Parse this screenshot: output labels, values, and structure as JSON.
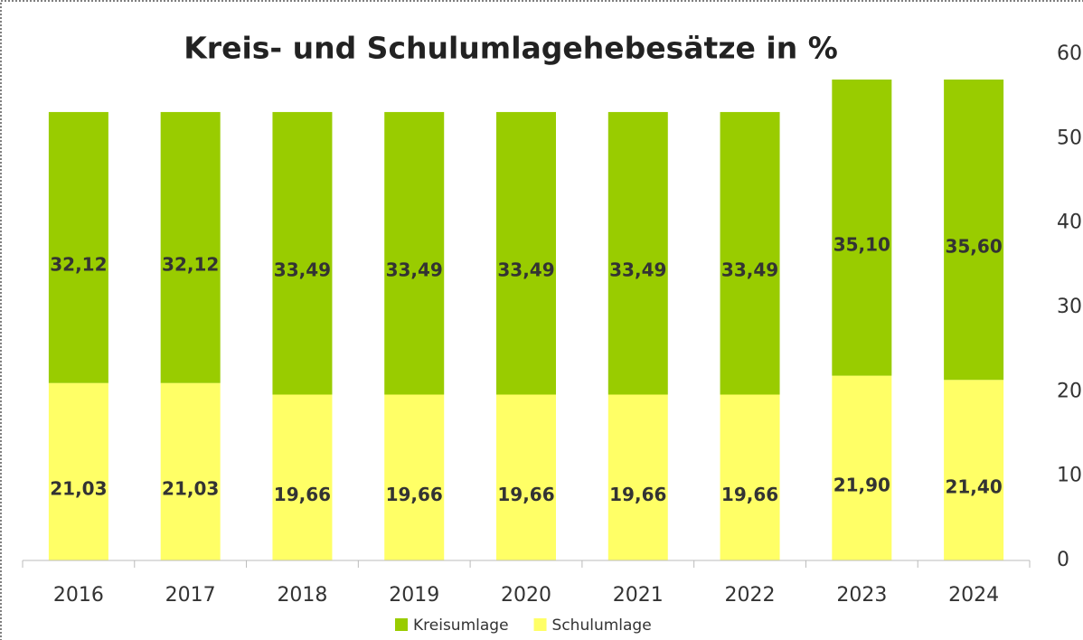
{
  "chart_data": {
    "type": "stacked_bar",
    "title": "Kreis- und Schulumlagehebesätze in %",
    "categories": [
      "2016",
      "2017",
      "2018",
      "2019",
      "2020",
      "2021",
      "2022",
      "2023",
      "2024"
    ],
    "series": [
      {
        "name": "Schulumlage",
        "color": "#ffff66",
        "values": [
          21.03,
          21.03,
          19.66,
          19.66,
          19.66,
          19.66,
          19.66,
          21.9,
          21.4
        ],
        "value_labels": [
          "21,03",
          "21,03",
          "19,66",
          "19,66",
          "19,66",
          "19,66",
          "19,66",
          "21,90",
          "21,40"
        ]
      },
      {
        "name": "Kreisumlage",
        "color": "#99cc00",
        "values": [
          32.12,
          32.12,
          33.49,
          33.49,
          33.49,
          33.49,
          33.49,
          35.1,
          35.6
        ],
        "value_labels": [
          "32,12",
          "32,12",
          "33,49",
          "33,49",
          "33,49",
          "33,49",
          "33,49",
          "35,10",
          "35,60"
        ]
      }
    ],
    "ylim": [
      0,
      60
    ],
    "yticks": [
      0,
      10,
      20,
      30,
      40,
      50,
      60
    ],
    "y_axis_side": "right",
    "legend": "bottom"
  }
}
